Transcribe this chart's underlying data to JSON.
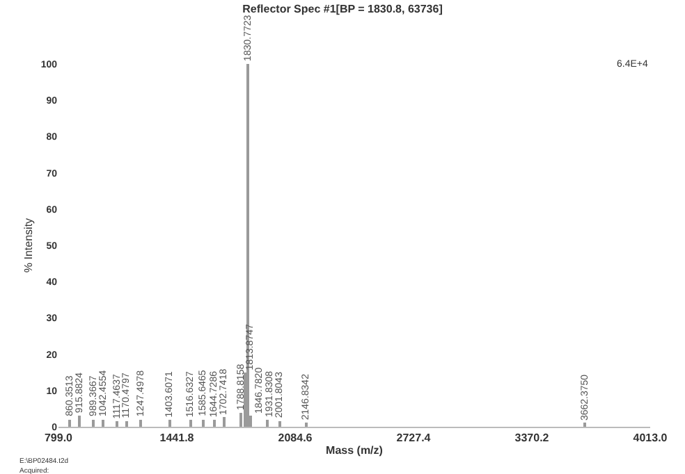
{
  "chart_data": {
    "type": "bar",
    "title": "Reflector Spec #1[BP = 1830.8, 63736]",
    "xlabel": "Mass (m/z)",
    "ylabel": "% Intensity",
    "x": [
      860.3513,
      915.8824,
      989.3667,
      1042.4554,
      1117.4637,
      1170.4797,
      1247.4978,
      1403.6071,
      1516.6327,
      1585.6465,
      1644.7286,
      1702.7418,
      1788.8158,
      1813.8747,
      1830.7723,
      1846.782,
      1931.8308,
      2001.8043,
      2146.8342,
      3662.375
    ],
    "values": [
      2,
      3,
      2,
      2,
      1.5,
      1.5,
      2,
      2,
      2,
      2,
      2,
      2.5,
      4,
      15,
      100,
      3,
      2,
      1.5,
      1,
      1
    ],
    "color": "#9a9a9a",
    "xlim": [
      799.0,
      4013.0
    ],
    "xticks": [
      {
        "value": 799.0,
        "label": "799.0"
      },
      {
        "value": 1441.8,
        "label": "1441.8"
      },
      {
        "value": 2084.6,
        "label": "2084.6"
      },
      {
        "value": 2727.4,
        "label": "2727.4"
      },
      {
        "value": 3370.2,
        "label": "3370.2"
      },
      {
        "value": 4013.0,
        "label": "4013.0"
      }
    ],
    "ylim": [
      0,
      100
    ],
    "yticks": [
      0,
      10,
      20,
      30,
      40,
      50,
      60,
      70,
      80,
      90,
      100
    ],
    "annotations": [
      {
        "text": "860.3513",
        "x": 860.3513,
        "y": 2
      },
      {
        "text": "915.8824",
        "x": 915.8824,
        "y": 3
      },
      {
        "text": "989.3667",
        "x": 989.3667,
        "y": 2
      },
      {
        "text": "1042.4554",
        "x": 1042.4554,
        "y": 2
      },
      {
        "text": "1117.4637",
        "x": 1117.4637,
        "y": 1.5
      },
      {
        "text": "1170.4797",
        "x": 1170.4797,
        "y": 1.5
      },
      {
        "text": "1247.4978",
        "x": 1247.4978,
        "y": 2
      },
      {
        "text": "1403.6071",
        "x": 1403.6071,
        "y": 2
      },
      {
        "text": "1516.6327",
        "x": 1516.6327,
        "y": 2
      },
      {
        "text": "1585.6465",
        "x": 1585.6465,
        "y": 2
      },
      {
        "text": "1644.7286",
        "x": 1644.7286,
        "y": 2
      },
      {
        "text": "1702.7418",
        "x": 1702.7418,
        "y": 2.5
      },
      {
        "text": "1788.8158",
        "x": 1788.8158,
        "y": 4
      },
      {
        "text": "1813.8747",
        "x": 1813.8747,
        "y": 15
      },
      {
        "text": "1830.7723",
        "x": 1830.7723,
        "y": 100
      },
      {
        "text": "1846.7820",
        "x": 1846.782,
        "y": 3
      },
      {
        "text": "1931.8308",
        "x": 1931.8308,
        "y": 2
      },
      {
        "text": "2001.8043",
        "x": 2001.8043,
        "y": 1.5
      },
      {
        "text": "2146.8342",
        "x": 2146.8342,
        "y": 1
      },
      {
        "text": "3662.3750",
        "x": 3662.375,
        "y": 1
      },
      "6.4E+4",
      "E:\\BP02484.t2d",
      "Acquired:"
    ]
  }
}
